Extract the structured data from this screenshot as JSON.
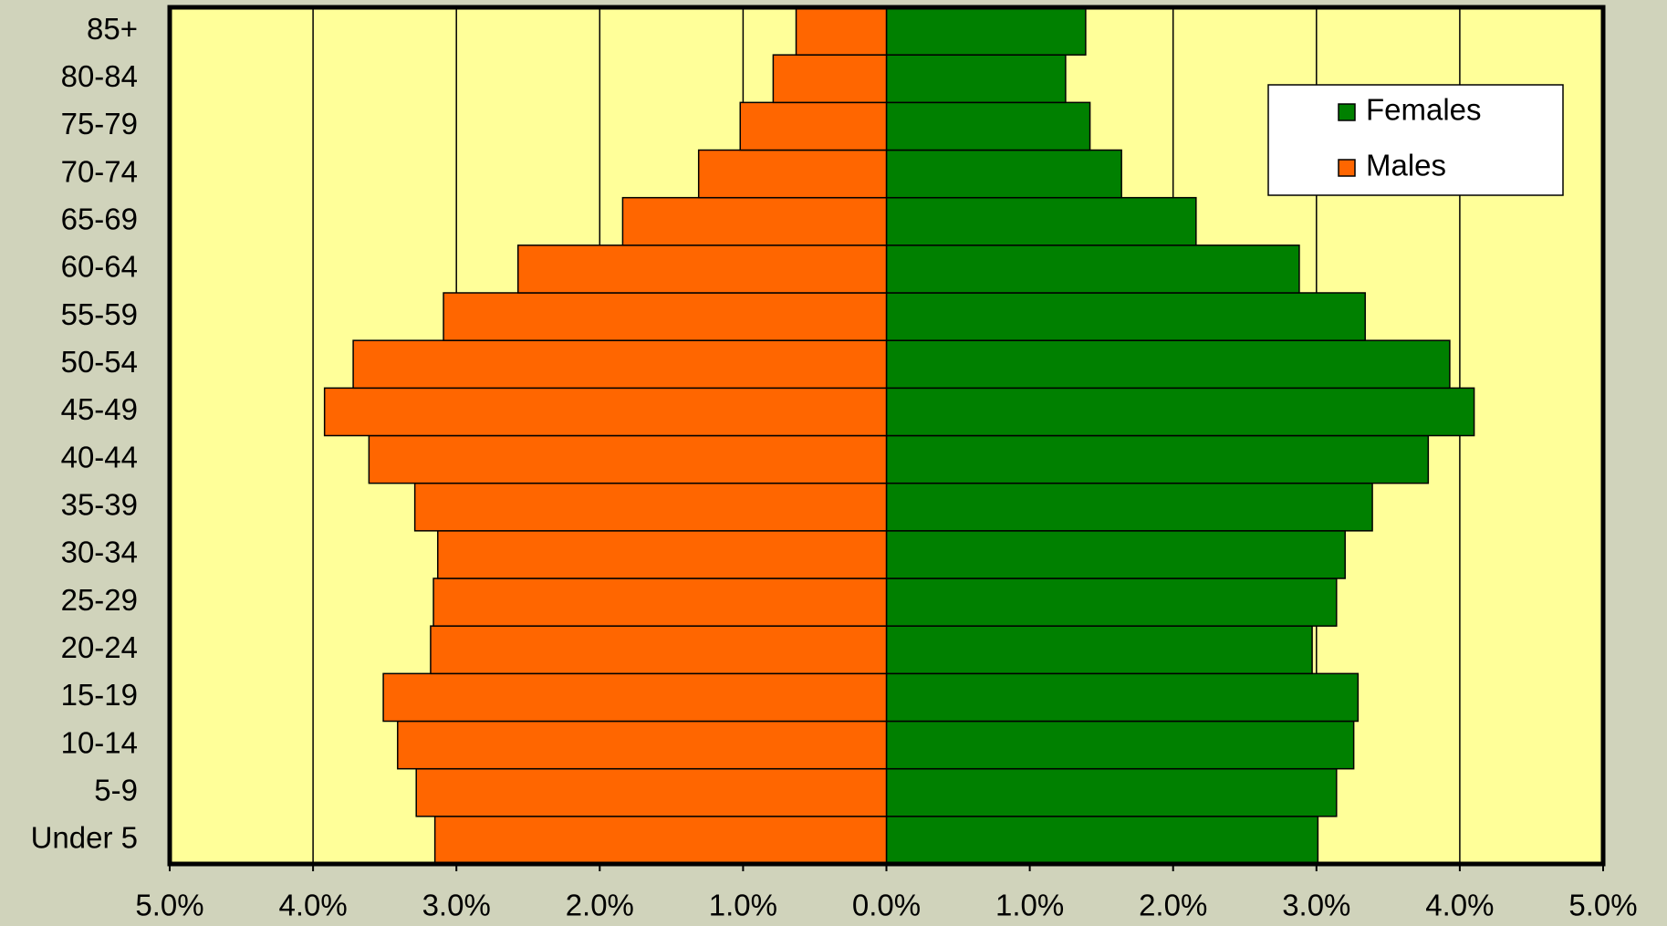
{
  "chart_data": {
    "type": "population_pyramid",
    "categories": [
      "Under 5",
      "5-9",
      "10-14",
      "15-19",
      "20-24",
      "25-29",
      "30-34",
      "35-39",
      "40-44",
      "45-49",
      "50-54",
      "55-59",
      "60-64",
      "65-69",
      "70-74",
      "75-79",
      "80-84",
      "85+"
    ],
    "series": [
      {
        "name": "Females",
        "color": "#008000",
        "values": [
          3.01,
          3.14,
          3.26,
          3.29,
          2.97,
          3.14,
          3.2,
          3.39,
          3.78,
          4.1,
          3.93,
          3.34,
          2.88,
          2.16,
          1.64,
          1.42,
          1.25,
          1.39
        ]
      },
      {
        "name": "Males",
        "color": "#ff6600",
        "values": [
          -3.15,
          -3.28,
          -3.41,
          -3.51,
          -3.18,
          -3.16,
          -3.13,
          -3.29,
          -3.61,
          -3.92,
          -3.72,
          -3.09,
          -2.57,
          -1.84,
          -1.31,
          -1.02,
          -0.79,
          -0.63
        ]
      }
    ],
    "xlim": [
      -5,
      5
    ],
    "xticks": [
      {
        "value": -5,
        "label": "5.0%"
      },
      {
        "value": -4,
        "label": "4.0%"
      },
      {
        "value": -3,
        "label": "3.0%"
      },
      {
        "value": -2,
        "label": "2.0%"
      },
      {
        "value": -1,
        "label": "1.0%"
      },
      {
        "value": 0,
        "label": "0.0%"
      },
      {
        "value": 1,
        "label": "1.0%"
      },
      {
        "value": 2,
        "label": "2.0%"
      },
      {
        "value": 3,
        "label": "3.0%"
      },
      {
        "value": 4,
        "label": "4.0%"
      },
      {
        "value": 5,
        "label": "5.0%"
      }
    ],
    "grid": true,
    "legend": "upper right",
    "plot_background": "#ffff99"
  }
}
